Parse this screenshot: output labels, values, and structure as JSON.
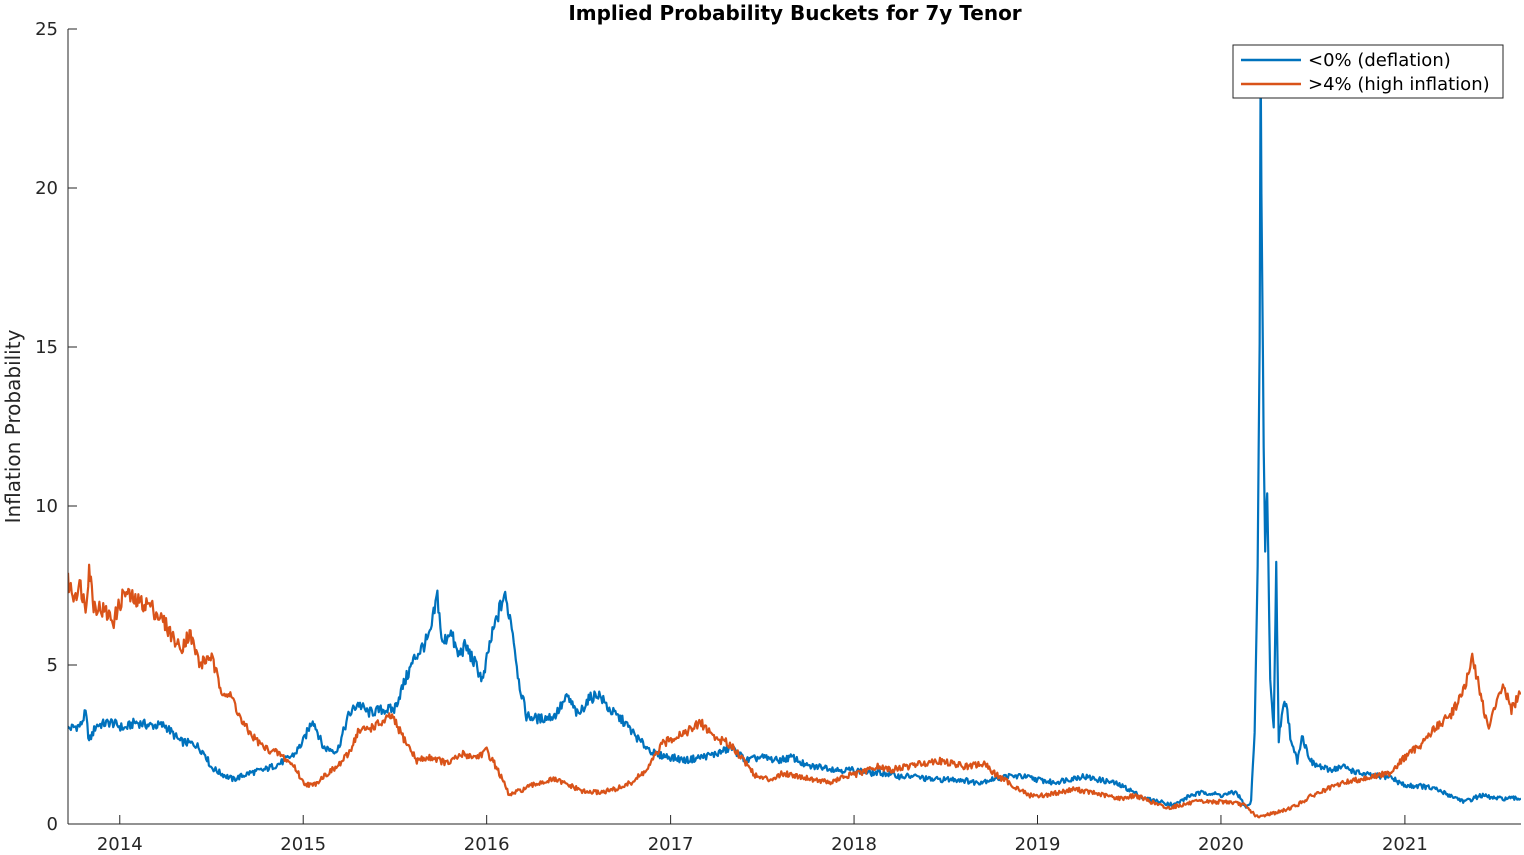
{
  "chart_data": {
    "type": "line",
    "title": "Implied Probability Buckets for 7y Tenor",
    "xlabel": "",
    "ylabel": "Inflation Probability",
    "xlim": [
      "2013-09-20",
      "2021-08-20"
    ],
    "ylim": [
      0,
      25
    ],
    "x_ticks": [
      "2014",
      "2015",
      "2016",
      "2017",
      "2018",
      "2019",
      "2020",
      "2021"
    ],
    "y_ticks": [
      0,
      5,
      10,
      15,
      20,
      25
    ],
    "grid": false,
    "legend_position": "top-right",
    "series": [
      {
        "name": "<0% (deflation)",
        "color": "#0072BD",
        "points": [
          [
            "2013-09-20",
            3.0
          ],
          [
            "2013-10-15",
            3.1
          ],
          [
            "2013-10-25",
            3.5
          ],
          [
            "2013-11-01",
            2.6
          ],
          [
            "2013-11-15",
            3.1
          ],
          [
            "2013-12-15",
            3.2
          ],
          [
            "2014-01-10",
            3.0
          ],
          [
            "2014-02-01",
            3.2
          ],
          [
            "2014-03-01",
            3.1
          ],
          [
            "2014-04-01",
            3.1
          ],
          [
            "2014-05-01",
            2.6
          ],
          [
            "2014-06-01",
            2.5
          ],
          [
            "2014-06-20",
            2.2
          ],
          [
            "2014-07-01",
            1.8
          ],
          [
            "2014-07-20",
            1.6
          ],
          [
            "2014-08-15",
            1.4
          ],
          [
            "2014-09-15",
            1.6
          ],
          [
            "2014-10-15",
            1.7
          ],
          [
            "2014-11-15",
            1.9
          ],
          [
            "2014-12-15",
            2.2
          ],
          [
            "2015-01-01",
            2.6
          ],
          [
            "2015-01-20",
            3.3
          ],
          [
            "2015-02-10",
            2.4
          ],
          [
            "2015-03-10",
            2.3
          ],
          [
            "2015-04-01",
            3.4
          ],
          [
            "2015-04-20",
            3.8
          ],
          [
            "2015-05-10",
            3.5
          ],
          [
            "2015-06-10",
            3.6
          ],
          [
            "2015-07-01",
            3.6
          ],
          [
            "2015-07-20",
            4.4
          ],
          [
            "2015-08-10",
            5.2
          ],
          [
            "2015-09-10",
            5.9
          ],
          [
            "2015-09-25",
            7.2
          ],
          [
            "2015-10-05",
            5.6
          ],
          [
            "2015-10-20",
            6.1
          ],
          [
            "2015-11-05",
            5.3
          ],
          [
            "2015-11-20",
            5.6
          ],
          [
            "2015-12-10",
            5.0
          ],
          [
            "2015-12-25",
            4.5
          ],
          [
            "2016-01-05",
            5.5
          ],
          [
            "2016-01-20",
            6.4
          ],
          [
            "2016-02-05",
            7.2
          ],
          [
            "2016-02-20",
            6.3
          ],
          [
            "2016-03-05",
            4.5
          ],
          [
            "2016-03-20",
            3.4
          ],
          [
            "2016-04-15",
            3.3
          ],
          [
            "2016-05-15",
            3.4
          ],
          [
            "2016-06-10",
            4.0
          ],
          [
            "2016-07-01",
            3.4
          ],
          [
            "2016-07-20",
            3.9
          ],
          [
            "2016-08-10",
            4.1
          ],
          [
            "2016-09-01",
            3.6
          ],
          [
            "2016-10-01",
            3.2
          ],
          [
            "2016-11-01",
            2.6
          ],
          [
            "2016-12-01",
            2.2
          ],
          [
            "2017-01-01",
            2.1
          ],
          [
            "2017-02-01",
            2.0
          ],
          [
            "2017-03-01",
            2.1
          ],
          [
            "2017-04-01",
            2.2
          ],
          [
            "2017-05-01",
            2.4
          ],
          [
            "2017-06-01",
            2.0
          ],
          [
            "2017-07-01",
            2.1
          ],
          [
            "2017-08-01",
            2.0
          ],
          [
            "2017-09-01",
            2.1
          ],
          [
            "2017-10-01",
            1.8
          ],
          [
            "2017-11-01",
            1.8
          ],
          [
            "2017-12-01",
            1.7
          ],
          [
            "2018-01-01",
            1.7
          ],
          [
            "2018-02-01",
            1.6
          ],
          [
            "2018-03-01",
            1.6
          ],
          [
            "2018-04-01",
            1.5
          ],
          [
            "2018-05-01",
            1.5
          ],
          [
            "2018-06-01",
            1.4
          ],
          [
            "2018-07-01",
            1.4
          ],
          [
            "2018-08-01",
            1.4
          ],
          [
            "2018-09-01",
            1.3
          ],
          [
            "2018-10-01",
            1.4
          ],
          [
            "2018-11-01",
            1.5
          ],
          [
            "2018-12-01",
            1.5
          ],
          [
            "2019-01-01",
            1.4
          ],
          [
            "2019-02-01",
            1.3
          ],
          [
            "2019-03-01",
            1.4
          ],
          [
            "2019-04-01",
            1.5
          ],
          [
            "2019-05-01",
            1.4
          ],
          [
            "2019-06-01",
            1.3
          ],
          [
            "2019-07-01",
            1.1
          ],
          [
            "2019-08-01",
            0.8
          ],
          [
            "2019-09-01",
            0.7
          ],
          [
            "2019-10-01",
            0.6
          ],
          [
            "2019-11-01",
            0.9
          ],
          [
            "2019-12-01",
            1.0
          ],
          [
            "2020-01-01",
            0.9
          ],
          [
            "2020-02-01",
            1.0
          ],
          [
            "2020-02-20",
            0.5
          ],
          [
            "2020-03-01",
            0.7
          ],
          [
            "2020-03-08",
            3.0
          ],
          [
            "2020-03-14",
            8.0
          ],
          [
            "2020-03-18",
            15.0
          ],
          [
            "2020-03-20",
            23.5
          ],
          [
            "2020-03-23",
            17.0
          ],
          [
            "2020-03-26",
            12.0
          ],
          [
            "2020-03-29",
            8.5
          ],
          [
            "2020-04-02",
            10.7
          ],
          [
            "2020-04-08",
            4.5
          ],
          [
            "2020-04-15",
            3.0
          ],
          [
            "2020-04-20",
            8.1
          ],
          [
            "2020-04-25",
            2.6
          ],
          [
            "2020-05-01",
            3.5
          ],
          [
            "2020-05-10",
            3.9
          ],
          [
            "2020-05-20",
            2.5
          ],
          [
            "2020-06-01",
            2.0
          ],
          [
            "2020-06-10",
            2.8
          ],
          [
            "2020-06-20",
            2.3
          ],
          [
            "2020-07-01",
            1.9
          ],
          [
            "2020-08-01",
            1.7
          ],
          [
            "2020-09-01",
            1.8
          ],
          [
            "2020-10-01",
            1.6
          ],
          [
            "2020-11-01",
            1.5
          ],
          [
            "2020-12-01",
            1.5
          ],
          [
            "2021-01-01",
            1.2
          ],
          [
            "2021-02-01",
            1.2
          ],
          [
            "2021-03-01",
            1.1
          ],
          [
            "2021-04-01",
            0.9
          ],
          [
            "2021-05-01",
            0.7
          ],
          [
            "2021-06-01",
            0.9
          ],
          [
            "2021-07-01",
            0.8
          ],
          [
            "2021-08-01",
            0.8
          ],
          [
            "2021-08-20",
            0.8
          ]
        ]
      },
      {
        "name": ">4% (high inflation)",
        "color": "#D95319",
        "points": [
          [
            "2013-09-20",
            7.6
          ],
          [
            "2013-10-01",
            7.2
          ],
          [
            "2013-10-15",
            7.5
          ],
          [
            "2013-10-25",
            6.8
          ],
          [
            "2013-11-01",
            8.1
          ],
          [
            "2013-11-10",
            6.9
          ],
          [
            "2013-12-01",
            6.7
          ],
          [
            "2013-12-20",
            6.4
          ],
          [
            "2014-01-10",
            7.3
          ],
          [
            "2014-02-01",
            7.0
          ],
          [
            "2014-03-01",
            6.9
          ],
          [
            "2014-04-01",
            6.3
          ],
          [
            "2014-05-01",
            5.5
          ],
          [
            "2014-05-20",
            6.0
          ],
          [
            "2014-06-10",
            5.0
          ],
          [
            "2014-07-01",
            5.3
          ],
          [
            "2014-07-20",
            4.3
          ],
          [
            "2014-08-15",
            3.9
          ],
          [
            "2014-09-01",
            3.2
          ],
          [
            "2014-09-20",
            2.8
          ],
          [
            "2014-10-15",
            2.4
          ],
          [
            "2014-11-15",
            2.2
          ],
          [
            "2014-12-15",
            1.8
          ],
          [
            "2015-01-01",
            1.3
          ],
          [
            "2015-01-20",
            1.2
          ],
          [
            "2015-02-10",
            1.5
          ],
          [
            "2015-03-10",
            1.8
          ],
          [
            "2015-04-01",
            2.2
          ],
          [
            "2015-04-20",
            2.9
          ],
          [
            "2015-05-10",
            3.0
          ],
          [
            "2015-06-10",
            3.2
          ],
          [
            "2015-06-25",
            3.4
          ],
          [
            "2015-07-20",
            2.7
          ],
          [
            "2015-08-15",
            2.0
          ],
          [
            "2015-09-15",
            2.1
          ],
          [
            "2015-10-15",
            1.9
          ],
          [
            "2015-11-15",
            2.2
          ],
          [
            "2015-12-10",
            2.1
          ],
          [
            "2016-01-01",
            2.3
          ],
          [
            "2016-01-20",
            1.8
          ],
          [
            "2016-02-01",
            1.4
          ],
          [
            "2016-02-15",
            0.9
          ],
          [
            "2016-03-15",
            1.1
          ],
          [
            "2016-04-15",
            1.3
          ],
          [
            "2016-05-15",
            1.4
          ],
          [
            "2016-06-15",
            1.2
          ],
          [
            "2016-07-15",
            1.0
          ],
          [
            "2016-08-15",
            1.0
          ],
          [
            "2016-09-15",
            1.1
          ],
          [
            "2016-10-15",
            1.3
          ],
          [
            "2016-11-15",
            1.7
          ],
          [
            "2016-12-15",
            2.5
          ],
          [
            "2017-01-15",
            2.8
          ],
          [
            "2017-02-15",
            3.0
          ],
          [
            "2017-03-01",
            3.2
          ],
          [
            "2017-04-01",
            2.7
          ],
          [
            "2017-05-01",
            2.5
          ],
          [
            "2017-06-01",
            1.9
          ],
          [
            "2017-06-20",
            1.5
          ],
          [
            "2017-07-15",
            1.4
          ],
          [
            "2017-08-15",
            1.6
          ],
          [
            "2017-09-15",
            1.5
          ],
          [
            "2017-10-15",
            1.4
          ],
          [
            "2017-11-15",
            1.3
          ],
          [
            "2017-12-15",
            1.5
          ],
          [
            "2018-01-15",
            1.6
          ],
          [
            "2018-02-15",
            1.8
          ],
          [
            "2018-03-15",
            1.7
          ],
          [
            "2018-04-15",
            1.8
          ],
          [
            "2018-05-15",
            1.9
          ],
          [
            "2018-06-15",
            2.0
          ],
          [
            "2018-07-15",
            1.9
          ],
          [
            "2018-08-15",
            1.8
          ],
          [
            "2018-09-15",
            1.9
          ],
          [
            "2018-10-15",
            1.5
          ],
          [
            "2018-11-15",
            1.2
          ],
          [
            "2018-12-15",
            0.9
          ],
          [
            "2019-01-15",
            0.9
          ],
          [
            "2019-02-15",
            1.0
          ],
          [
            "2019-03-15",
            1.1
          ],
          [
            "2019-04-15",
            1.0
          ],
          [
            "2019-05-15",
            0.9
          ],
          [
            "2019-06-15",
            0.8
          ],
          [
            "2019-07-15",
            0.9
          ],
          [
            "2019-08-15",
            0.7
          ],
          [
            "2019-09-15",
            0.5
          ],
          [
            "2019-10-15",
            0.6
          ],
          [
            "2019-11-15",
            0.7
          ],
          [
            "2019-12-15",
            0.7
          ],
          [
            "2020-01-15",
            0.7
          ],
          [
            "2020-02-15",
            0.6
          ],
          [
            "2020-03-01",
            0.4
          ],
          [
            "2020-03-15",
            0.2
          ],
          [
            "2020-04-01",
            0.3
          ],
          [
            "2020-05-01",
            0.4
          ],
          [
            "2020-06-01",
            0.6
          ],
          [
            "2020-07-01",
            0.9
          ],
          [
            "2020-08-01",
            1.1
          ],
          [
            "2020-09-01",
            1.3
          ],
          [
            "2020-10-01",
            1.4
          ],
          [
            "2020-11-01",
            1.5
          ],
          [
            "2020-12-01",
            1.6
          ],
          [
            "2021-01-01",
            2.1
          ],
          [
            "2021-02-01",
            2.5
          ],
          [
            "2021-03-01",
            3.0
          ],
          [
            "2021-04-01",
            3.4
          ],
          [
            "2021-05-01",
            4.3
          ],
          [
            "2021-05-15",
            5.2
          ],
          [
            "2021-06-01",
            4.1
          ],
          [
            "2021-06-15",
            3.0
          ],
          [
            "2021-07-01",
            3.7
          ],
          [
            "2021-07-15",
            4.4
          ],
          [
            "2021-08-01",
            3.6
          ],
          [
            "2021-08-20",
            4.1
          ]
        ]
      }
    ]
  }
}
